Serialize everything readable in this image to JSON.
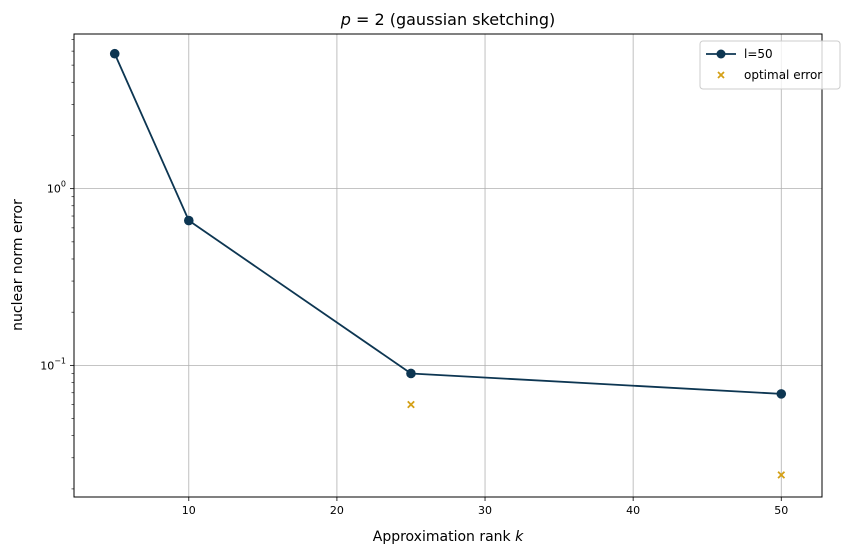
{
  "chart_data": {
    "type": "line",
    "title": "p = 2 (gaussian sketching)",
    "title_math": "p",
    "title_rest": " = 2 (gaussian sketching)",
    "xlabel": "Approximation rank",
    "xlabel_math": "k",
    "ylabel": "nuclear norm error",
    "xlim": [
      2.25,
      52.75
    ],
    "ylim": [
      0.018,
      7.5
    ],
    "yscale": "log",
    "grid": true,
    "legend_position": "top-right",
    "x_ticks": [
      10,
      20,
      30,
      40,
      50
    ],
    "x_tick_labels": [
      "10",
      "20",
      "30",
      "40",
      "50"
    ],
    "y_major_ticks": [
      0.1,
      1
    ],
    "y_tick_labels": [
      {
        "base": "10",
        "exp": "−1"
      },
      {
        "base": "10",
        "exp": "0"
      }
    ],
    "y_minor_ticks": [
      0.02,
      0.03,
      0.04,
      0.05,
      0.06,
      0.07,
      0.08,
      0.09,
      0.2,
      0.3,
      0.4,
      0.5,
      0.6,
      0.7,
      0.8,
      0.9,
      2,
      3,
      4,
      5,
      6,
      7
    ],
    "series": [
      {
        "name": "l=50",
        "kind": "line-marker",
        "color": "#0d3652",
        "x": [
          5,
          10,
          25,
          50
        ],
        "y": [
          5.8,
          0.66,
          0.09,
          0.069
        ]
      },
      {
        "name": "optimal error",
        "kind": "scatter-x",
        "color": "#d4a017",
        "x": [
          25,
          50
        ],
        "y": [
          0.06,
          0.024
        ]
      }
    ]
  }
}
